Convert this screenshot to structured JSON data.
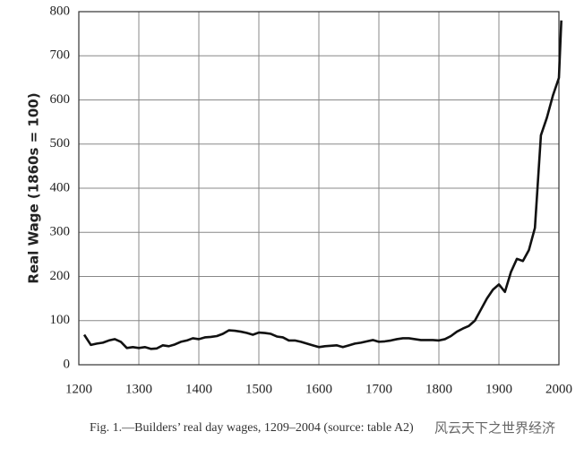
{
  "chart_data": {
    "type": "line",
    "y_label": "Real Wage (1860s = 100)",
    "caption": "Fig. 1.—Builders’ real day wages, 1209–2004 (source: table A2)",
    "watermark": "风云天下之世界经济",
    "color": "#111111",
    "grid": true,
    "xlim": [
      1200,
      2000
    ],
    "xticks": [
      1200,
      1300,
      1400,
      1500,
      1600,
      1700,
      1800,
      1900,
      2000
    ],
    "ylim": [
      0,
      800
    ],
    "yticks": [
      0,
      100,
      200,
      300,
      400,
      500,
      600,
      700,
      800
    ],
    "x": [
      1209,
      1220,
      1230,
      1240,
      1250,
      1260,
      1270,
      1280,
      1290,
      1300,
      1310,
      1320,
      1330,
      1340,
      1350,
      1360,
      1370,
      1380,
      1390,
      1400,
      1410,
      1420,
      1430,
      1440,
      1450,
      1460,
      1470,
      1480,
      1490,
      1500,
      1510,
      1520,
      1530,
      1540,
      1550,
      1560,
      1570,
      1580,
      1590,
      1600,
      1610,
      1620,
      1630,
      1640,
      1650,
      1660,
      1670,
      1680,
      1690,
      1700,
      1710,
      1720,
      1730,
      1740,
      1750,
      1760,
      1770,
      1780,
      1790,
      1800,
      1810,
      1820,
      1830,
      1840,
      1850,
      1860,
      1870,
      1880,
      1890,
      1900,
      1910,
      1920,
      1930,
      1940,
      1950,
      1960,
      1970,
      1980,
      1990,
      2000,
      2004
    ],
    "values": [
      68,
      45,
      48,
      50,
      55,
      58,
      52,
      38,
      40,
      38,
      40,
      36,
      37,
      44,
      42,
      46,
      52,
      55,
      60,
      58,
      62,
      63,
      65,
      70,
      78,
      77,
      75,
      72,
      68,
      73,
      72,
      70,
      64,
      62,
      55,
      55,
      52,
      48,
      44,
      40,
      42,
      43,
      44,
      40,
      44,
      48,
      50,
      53,
      56,
      52,
      53,
      55,
      58,
      60,
      60,
      58,
      56,
      56,
      56,
      55,
      58,
      65,
      75,
      82,
      88,
      100,
      125,
      150,
      170,
      182,
      165,
      210,
      240,
      235,
      260,
      310,
      520,
      560,
      610,
      650,
      780
    ]
  }
}
